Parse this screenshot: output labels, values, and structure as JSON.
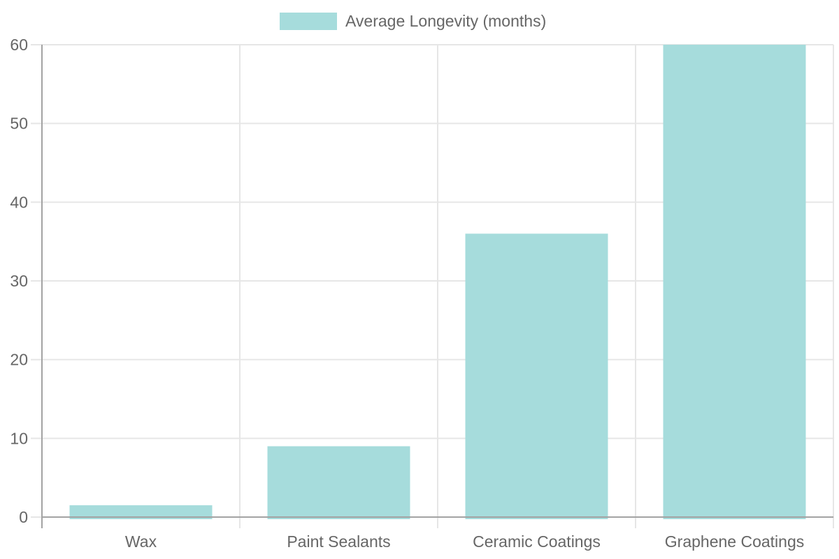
{
  "legend": {
    "label": "Average Longevity (months)"
  },
  "chart_data": {
    "type": "bar",
    "title": "",
    "xlabel": "",
    "ylabel": "",
    "categories": [
      "Wax",
      "Paint Sealants",
      "Ceramic Coatings",
      "Graphene Coatings"
    ],
    "series": [
      {
        "name": "Average Longevity (months)",
        "values": [
          1.5,
          9,
          36,
          60
        ]
      }
    ],
    "ylim": [
      0,
      60
    ],
    "yticks": [
      0,
      10,
      20,
      30,
      40,
      50,
      60
    ],
    "grid": true,
    "legend_position": "top-center",
    "colors": {
      "bar": "#a6dcdc",
      "gridline": "#e6e6e6",
      "axis": "#a3a3a3",
      "text": "#666666",
      "background": "#ffffff"
    }
  }
}
